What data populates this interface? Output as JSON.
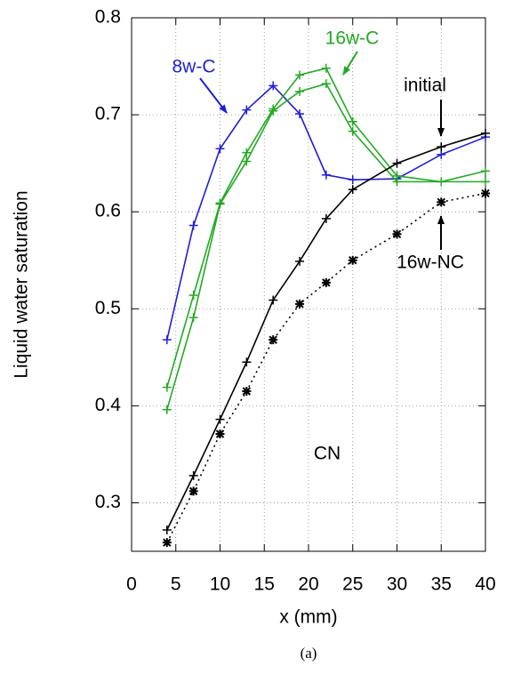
{
  "chart_data": {
    "type": "line",
    "xlabel": "x (mm)",
    "ylabel": "Liquid water saturation",
    "caption": "(a)",
    "x": [
      4,
      7,
      10,
      13,
      16,
      19,
      22,
      25,
      30,
      35,
      40
    ],
    "series": [
      {
        "name": "8w-C",
        "color": "#1f1fd6",
        "style": "solid",
        "marker": "plus",
        "values": [
          0.468,
          0.586,
          0.665,
          0.705,
          0.73,
          0.701,
          0.638,
          0.633,
          0.634,
          0.659,
          0.677
        ]
      },
      {
        "name": "16w-C",
        "color": "#22aa22",
        "style": "solid",
        "marker": "plus",
        "values": [
          0.419,
          0.514,
          0.609,
          0.661,
          0.706,
          0.741,
          0.748,
          0.693,
          0.637,
          0.631,
          0.642
        ]
      },
      {
        "color": "#22aa22",
        "style": "solid",
        "marker": "plus",
        "values": [
          0.396,
          0.491,
          0.608,
          0.652,
          0.704,
          0.724,
          0.732,
          0.683,
          0.631,
          0.631,
          0.631
        ]
      },
      {
        "name": "initial",
        "color": "#000000",
        "style": "solid",
        "marker": "plus",
        "values": [
          0.272,
          0.328,
          0.386,
          0.445,
          0.509,
          0.549,
          0.593,
          0.623,
          0.65,
          0.667,
          0.681
        ]
      },
      {
        "name": "16w-NC",
        "color": "#000000",
        "style": "dotted",
        "marker": "star",
        "values": [
          0.259,
          0.312,
          0.371,
          0.415,
          0.468,
          0.505,
          0.527,
          0.55,
          0.577,
          0.61,
          0.619
        ]
      }
    ],
    "annotations": [
      "CN"
    ],
    "xlim": [
      0,
      40
    ],
    "xticks": [
      0,
      5,
      10,
      15,
      20,
      25,
      30,
      35,
      40
    ],
    "ylim": [
      0.25,
      0.8
    ],
    "yticks": [
      0.3,
      0.4,
      0.5,
      0.6,
      0.7,
      0.8
    ],
    "grid": true
  }
}
